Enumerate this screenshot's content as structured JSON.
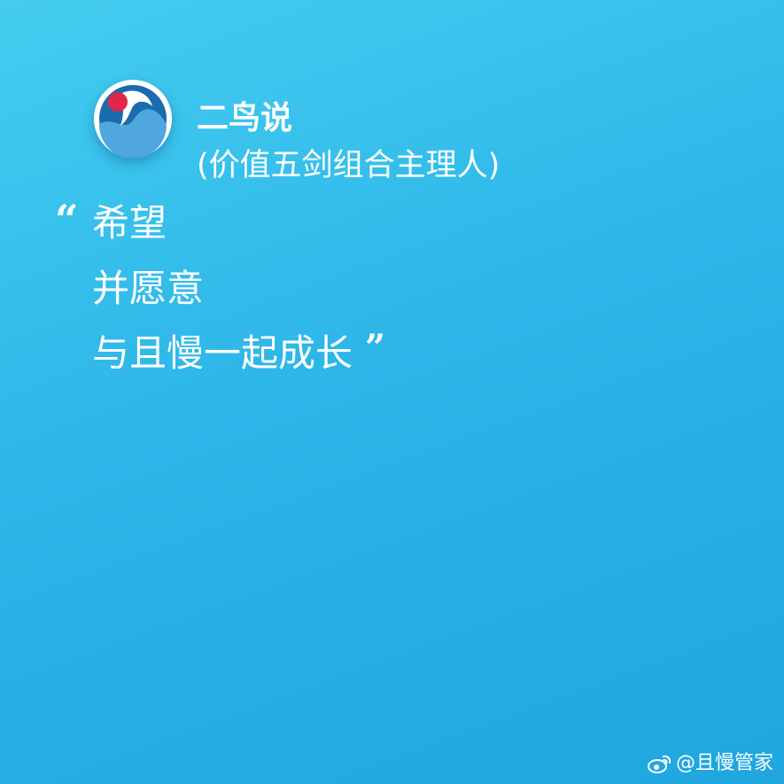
{
  "author": {
    "name": "二鸟说",
    "role": "(价值五剑组合主理人)"
  },
  "quote": {
    "open_mark": "“",
    "lines": [
      "希望",
      "并愿意",
      "与且慢一起成长"
    ],
    "close_mark": "”"
  },
  "watermark": {
    "text": "@且慢管家",
    "icon": "weibo-icon"
  },
  "colors": {
    "background_top": "#44cdf0",
    "background_bottom": "#1fa6df",
    "text": "#ffffff",
    "avatar_dark_blue": "#1a6cae",
    "avatar_light_blue": "#4fa7dd",
    "avatar_red": "#e3254c"
  }
}
